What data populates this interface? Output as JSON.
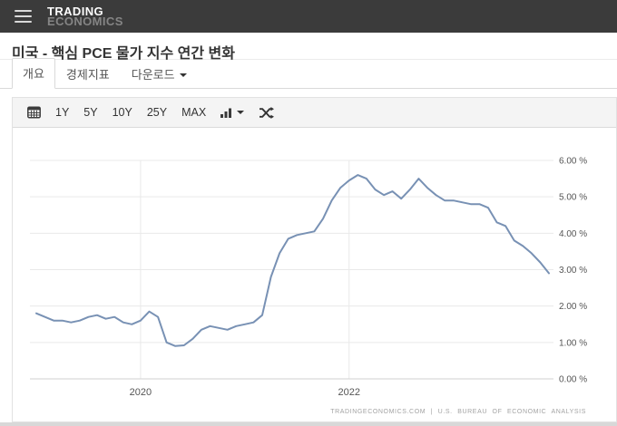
{
  "header": {
    "menu_icon": "hamburger-menu",
    "brand_top": "TRADING",
    "brand_bottom": "ECONOMICS"
  },
  "page": {
    "title": "미국 - 핵심 PCE 물가 지수 연간 변화"
  },
  "tabs": {
    "overview": "개요",
    "indicators": "경제지표",
    "download": "다운로드"
  },
  "toolbar": {
    "calendar_icon": "calendar",
    "ranges": [
      "1Y",
      "5Y",
      "10Y",
      "25Y",
      "MAX"
    ],
    "chart_type_icon": "column-chart",
    "compare_icon": "compare-shuffle"
  },
  "footer": {
    "attribution": "TRADINGECONOMICS.COM | U.S. BUREAU OF ECONOMIC ANALYSIS"
  },
  "chart_data": {
    "type": "line",
    "title": "미국 - 핵심 PCE 물가 지수 연간 변화",
    "unit": "percent",
    "frequency": "monthly",
    "x_start": "2019-01",
    "x_end": "2023-12",
    "line_color": "#7891b4",
    "grid": true,
    "legend": false,
    "ylim": [
      0,
      6
    ],
    "y_ticks": [
      0,
      1,
      2,
      3,
      4,
      5,
      6
    ],
    "y_tick_labels": [
      "0.00 %",
      "1.00 %",
      "2.00 %",
      "3.00 %",
      "4.00 %",
      "5.00 %",
      "6.00 %"
    ],
    "x_tick_labels": [
      "2020",
      "2022"
    ],
    "x_tick_month_index": [
      12,
      36
    ],
    "values": [
      1.8,
      1.7,
      1.6,
      1.6,
      1.55,
      1.6,
      1.7,
      1.75,
      1.65,
      1.7,
      1.55,
      1.5,
      1.6,
      1.85,
      1.7,
      1.0,
      0.9,
      0.92,
      1.1,
      1.35,
      1.45,
      1.4,
      1.35,
      1.45,
      1.5,
      1.55,
      1.75,
      2.8,
      3.45,
      3.85,
      3.95,
      4.0,
      4.05,
      4.4,
      4.9,
      5.25,
      5.45,
      5.6,
      5.5,
      5.2,
      5.05,
      5.15,
      4.95,
      5.2,
      5.5,
      5.25,
      5.05,
      4.9,
      4.9,
      4.85,
      4.8,
      4.8,
      4.7,
      4.3,
      4.2,
      3.8,
      3.65,
      3.45,
      3.2,
      2.9
    ]
  }
}
